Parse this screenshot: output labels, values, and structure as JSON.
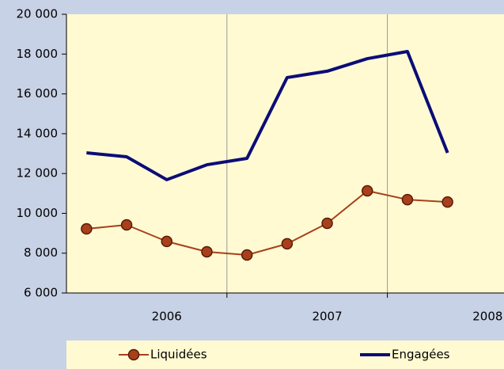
{
  "chart_data": {
    "type": "line",
    "categories": [
      null,
      null,
      "2006",
      null,
      null,
      null,
      "2007",
      null,
      null,
      null,
      "2008"
    ],
    "series": [
      {
        "name": "Liquidées",
        "color": "#a8401c",
        "marker": true,
        "values": [
          9220,
          9420,
          8590,
          8070,
          7910,
          8470,
          9500,
          11130,
          10690,
          10570,
          null
        ]
      },
      {
        "name": "Engagées",
        "color": "#0c0c78",
        "marker": false,
        "values": [
          13040,
          12840,
          11690,
          12440,
          12760,
          16820,
          17140,
          17770,
          18130,
          13040,
          null
        ]
      }
    ],
    "ylim": [
      6000,
      20000
    ],
    "yticks": [
      {
        "value": 6000,
        "label": "6 000"
      },
      {
        "value": 8000,
        "label": "8 000"
      },
      {
        "value": 10000,
        "label": "10 000"
      },
      {
        "value": 12000,
        "label": "12 000"
      },
      {
        "value": 14000,
        "label": "14 000"
      },
      {
        "value": 16000,
        "label": "16 000"
      },
      {
        "value": 18000,
        "label": "18 000"
      },
      {
        "value": 20000,
        "label": "20 000"
      }
    ],
    "grid": true,
    "legend": "bottom"
  }
}
